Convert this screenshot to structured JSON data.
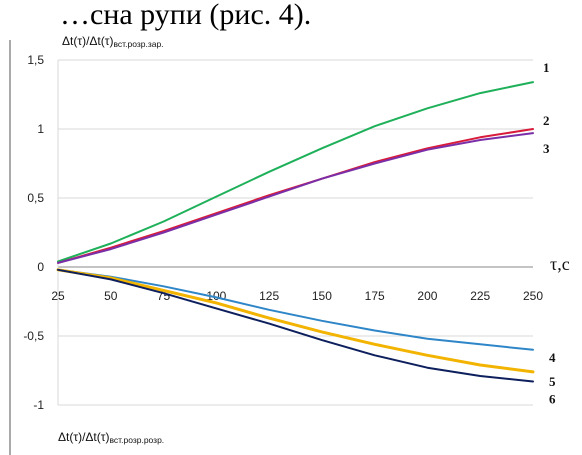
{
  "header_fragment": "…сна рупи (рис. 4).",
  "chart_data": {
    "type": "line",
    "ylabel_top": {
      "main": "Δt(τ)/Δt(τ)",
      "sub": "вст.розр.зар."
    },
    "ylabel_bottom": {
      "main": "Δt(τ)/Δt(τ)",
      "sub": "вст.розр.розр."
    },
    "xlabel": "τ,c",
    "x_ticks": [
      25,
      50,
      75,
      100,
      125,
      150,
      175,
      200,
      225,
      250
    ],
    "y_ticks": [
      {
        "value": 1.5,
        "label": "1,5"
      },
      {
        "value": 1,
        "label": "1"
      },
      {
        "value": 0.5,
        "label": "0,5"
      },
      {
        "value": 0,
        "label": "0"
      },
      {
        "value": -0.5,
        "label": "-0,5"
      },
      {
        "value": -1,
        "label": "-1"
      }
    ],
    "xlim": [
      25,
      250
    ],
    "ylim": [
      -1,
      1.5
    ],
    "grid": "horizontal",
    "x": [
      25,
      50,
      75,
      100,
      125,
      150,
      175,
      200,
      225,
      250
    ],
    "series": [
      {
        "name": "1",
        "color": "#1fb05a",
        "values": [
          0.04,
          0.17,
          0.33,
          0.51,
          0.69,
          0.86,
          1.02,
          1.15,
          1.26,
          1.34
        ]
      },
      {
        "name": "2",
        "color": "#d81b3a",
        "values": [
          0.03,
          0.14,
          0.26,
          0.39,
          0.52,
          0.64,
          0.76,
          0.86,
          0.94,
          1.0
        ]
      },
      {
        "name": "3",
        "color": "#7a2fa8",
        "values": [
          0.03,
          0.13,
          0.25,
          0.38,
          0.51,
          0.64,
          0.75,
          0.85,
          0.92,
          0.97
        ]
      },
      {
        "name": "4",
        "color": "#2e86c8",
        "values": [
          -0.02,
          -0.07,
          -0.14,
          -0.22,
          -0.31,
          -0.39,
          -0.46,
          -0.52,
          -0.56,
          -0.6
        ]
      },
      {
        "name": "5",
        "color": "#f2b400",
        "values": [
          -0.02,
          -0.08,
          -0.17,
          -0.26,
          -0.37,
          -0.47,
          -0.56,
          -0.64,
          -0.71,
          -0.76
        ]
      },
      {
        "name": "6",
        "color": "#0d1f5c",
        "values": [
          -0.02,
          -0.09,
          -0.19,
          -0.3,
          -0.41,
          -0.53,
          -0.64,
          -0.73,
          -0.79,
          -0.83
        ]
      }
    ]
  }
}
